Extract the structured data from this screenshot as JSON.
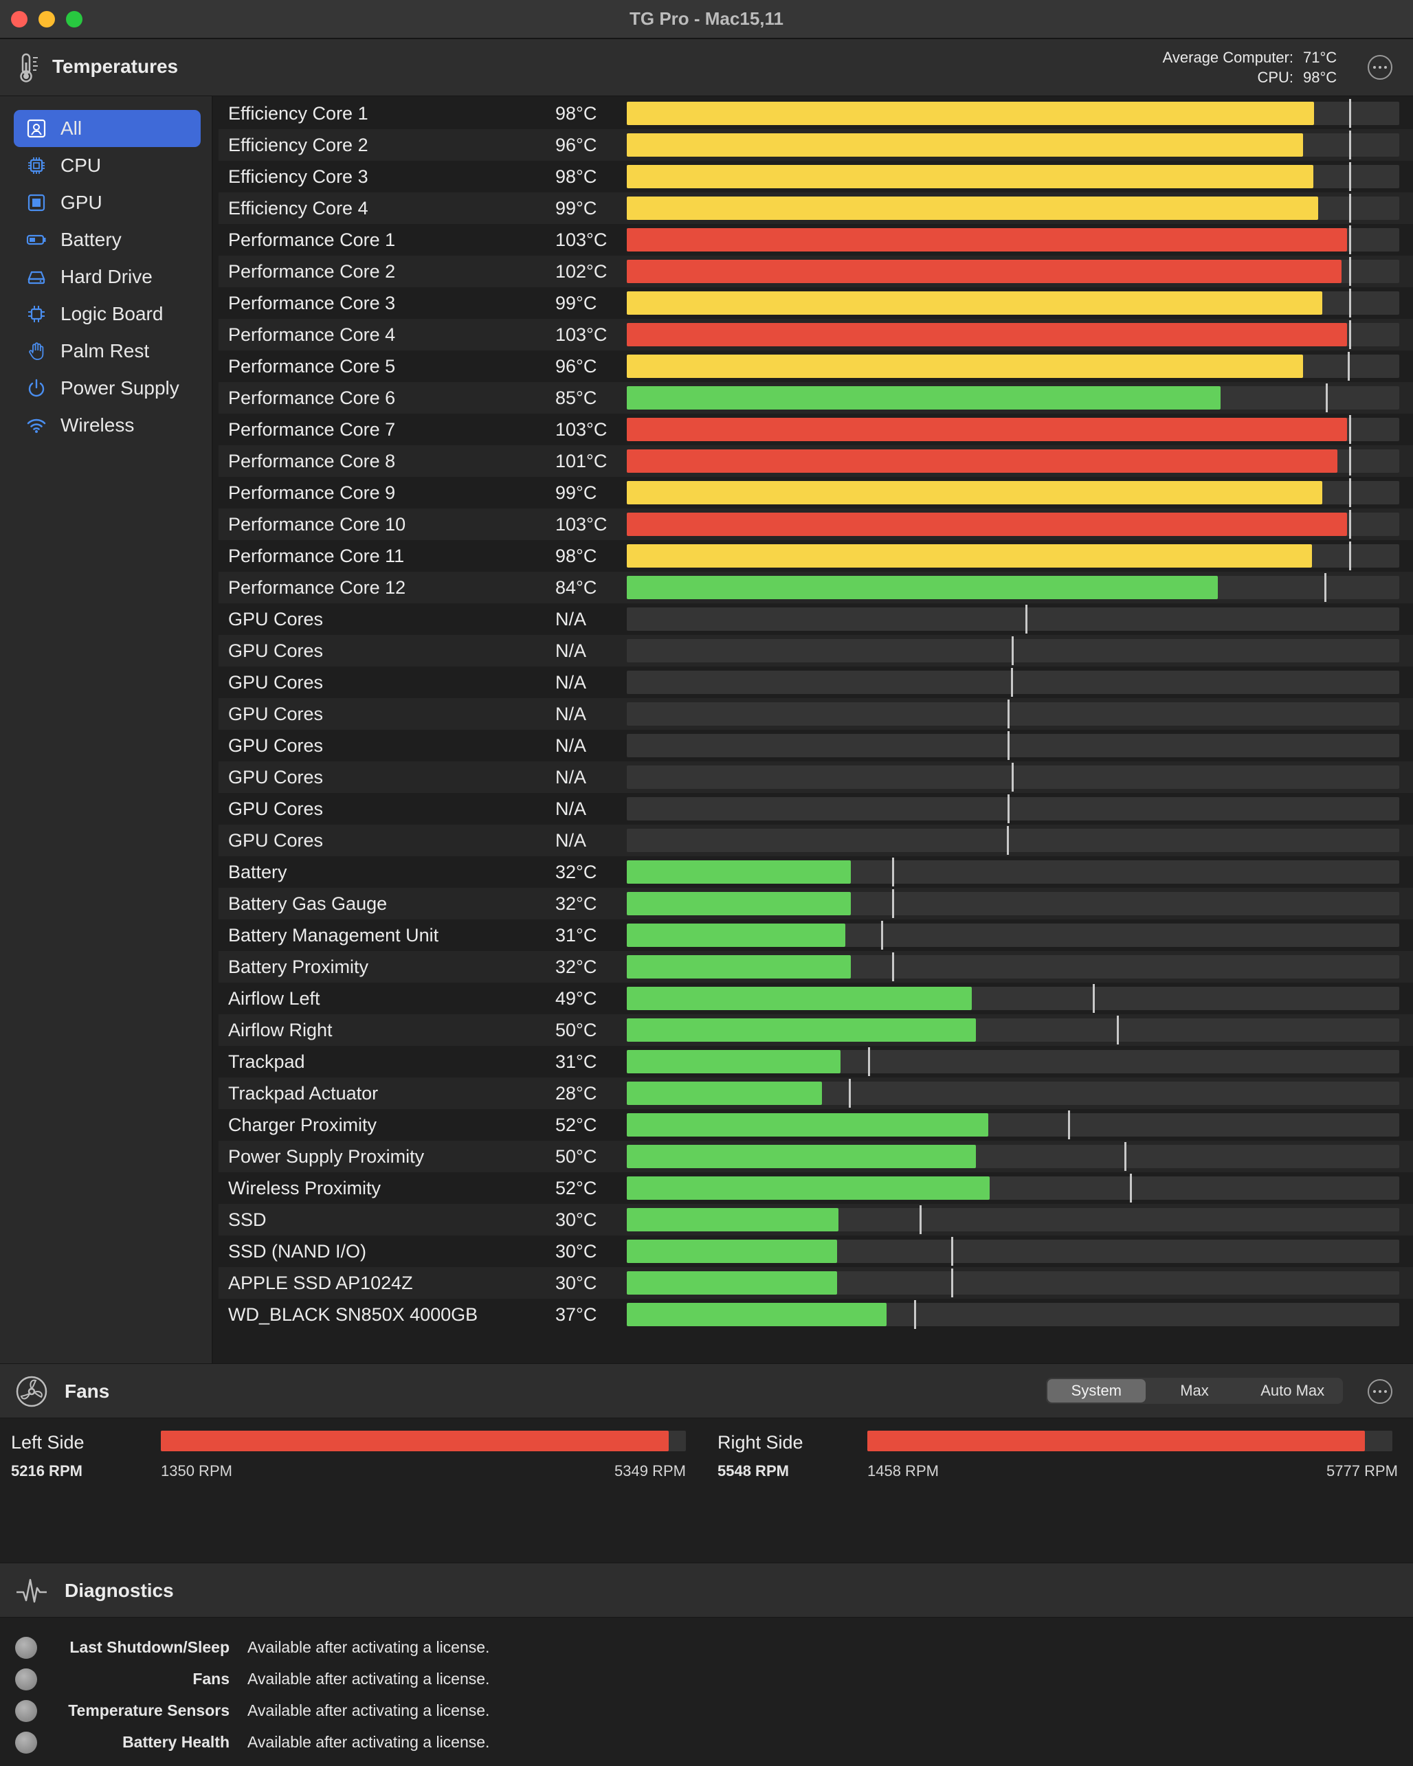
{
  "window": {
    "title": "TG Pro - Mac15,11"
  },
  "temps_header": {
    "label": "Temperatures",
    "avg_label": "Average Computer:",
    "avg_value": "71°C",
    "cpu_label": "CPU:",
    "cpu_value": "98°C"
  },
  "sidebar": {
    "items": [
      {
        "label": "All",
        "icon": "all-sensors-icon",
        "selected": true
      },
      {
        "label": "CPU",
        "icon": "cpu-icon"
      },
      {
        "label": "GPU",
        "icon": "gpu-icon"
      },
      {
        "label": "Battery",
        "icon": "battery-icon"
      },
      {
        "label": "Hard Drive",
        "icon": "hard-drive-icon"
      },
      {
        "label": "Logic Board",
        "icon": "logic-board-icon"
      },
      {
        "label": "Palm Rest",
        "icon": "hand-icon"
      },
      {
        "label": "Power Supply",
        "icon": "power-icon"
      },
      {
        "label": "Wireless",
        "icon": "wifi-icon"
      }
    ]
  },
  "colors": {
    "hot": "#e74c3c",
    "warm": "#f8d548",
    "ok": "#63d05b",
    "accent": "#3f6ad8"
  },
  "sensors": [
    {
      "name": "Efficiency Core 1",
      "temp": "98°C",
      "level": 0.89,
      "max_mark": 0.935,
      "color": "warm"
    },
    {
      "name": "Efficiency Core 2",
      "temp": "96°C",
      "level": 0.875,
      "max_mark": 0.935,
      "color": "warm"
    },
    {
      "name": "Efficiency Core 3",
      "temp": "98°C",
      "level": 0.889,
      "max_mark": 0.935,
      "color": "warm"
    },
    {
      "name": "Efficiency Core 4",
      "temp": "99°C",
      "level": 0.895,
      "max_mark": 0.935,
      "color": "warm"
    },
    {
      "name": "Performance Core 1",
      "temp": "103°C",
      "level": 0.932,
      "max_mark": 0.935,
      "color": "hot"
    },
    {
      "name": "Performance Core 2",
      "temp": "102°C",
      "level": 0.925,
      "max_mark": 0.935,
      "color": "hot"
    },
    {
      "name": "Performance Core 3",
      "temp": "99°C",
      "level": 0.9,
      "max_mark": 0.935,
      "color": "warm"
    },
    {
      "name": "Performance Core 4",
      "temp": "103°C",
      "level": 0.932,
      "max_mark": 0.935,
      "color": "hot"
    },
    {
      "name": "Performance Core 5",
      "temp": "96°C",
      "level": 0.875,
      "max_mark": 0.933,
      "color": "warm"
    },
    {
      "name": "Performance Core 6",
      "temp": "85°C",
      "level": 0.769,
      "max_mark": 0.905,
      "color": "ok"
    },
    {
      "name": "Performance Core 7",
      "temp": "103°C",
      "level": 0.932,
      "max_mark": 0.935,
      "color": "hot"
    },
    {
      "name": "Performance Core 8",
      "temp": "101°C",
      "level": 0.92,
      "max_mark": 0.935,
      "color": "hot"
    },
    {
      "name": "Performance Core 9",
      "temp": "99°C",
      "level": 0.9,
      "max_mark": 0.935,
      "color": "warm"
    },
    {
      "name": "Performance Core 10",
      "temp": "103°C",
      "level": 0.932,
      "max_mark": 0.935,
      "color": "hot"
    },
    {
      "name": "Performance Core 11",
      "temp": "98°C",
      "level": 0.887,
      "max_mark": 0.935,
      "color": "warm"
    },
    {
      "name": "Performance Core 12",
      "temp": "84°C",
      "level": 0.765,
      "max_mark": 0.903,
      "color": "ok"
    },
    {
      "name": "GPU Cores",
      "temp": "N/A",
      "level": 0,
      "max_mark": 0.516,
      "color": "ok"
    },
    {
      "name": "GPU Cores",
      "temp": "N/A",
      "level": 0,
      "max_mark": 0.498,
      "color": "ok"
    },
    {
      "name": "GPU Cores",
      "temp": "N/A",
      "level": 0,
      "max_mark": 0.497,
      "color": "ok"
    },
    {
      "name": "GPU Cores",
      "temp": "N/A",
      "level": 0,
      "max_mark": 0.493,
      "color": "ok"
    },
    {
      "name": "GPU Cores",
      "temp": "N/A",
      "level": 0,
      "max_mark": 0.493,
      "color": "ok"
    },
    {
      "name": "GPU Cores",
      "temp": "N/A",
      "level": 0,
      "max_mark": 0.498,
      "color": "ok"
    },
    {
      "name": "GPU Cores",
      "temp": "N/A",
      "level": 0,
      "max_mark": 0.493,
      "color": "ok"
    },
    {
      "name": "GPU Cores",
      "temp": "N/A",
      "level": 0,
      "max_mark": 0.492,
      "color": "ok"
    },
    {
      "name": "Battery",
      "temp": "32°C",
      "level": 0.29,
      "max_mark": 0.343,
      "color": "ok"
    },
    {
      "name": "Battery Gas Gauge",
      "temp": "32°C",
      "level": 0.29,
      "max_mark": 0.343,
      "color": "ok"
    },
    {
      "name": "Battery Management Unit",
      "temp": "31°C",
      "level": 0.283,
      "max_mark": 0.329,
      "color": "ok"
    },
    {
      "name": "Battery Proximity",
      "temp": "32°C",
      "level": 0.29,
      "max_mark": 0.343,
      "color": "ok"
    },
    {
      "name": "Airflow Left",
      "temp": "49°C",
      "level": 0.447,
      "max_mark": 0.603,
      "color": "ok"
    },
    {
      "name": "Airflow Right",
      "temp": "50°C",
      "level": 0.452,
      "max_mark": 0.634,
      "color": "ok"
    },
    {
      "name": "Trackpad",
      "temp": "31°C",
      "level": 0.277,
      "max_mark": 0.312,
      "color": "ok"
    },
    {
      "name": "Trackpad Actuator",
      "temp": "28°C",
      "level": 0.253,
      "max_mark": 0.287,
      "color": "ok"
    },
    {
      "name": "Charger Proximity",
      "temp": "52°C",
      "level": 0.468,
      "max_mark": 0.571,
      "color": "ok"
    },
    {
      "name": "Power Supply Proximity",
      "temp": "50°C",
      "level": 0.452,
      "max_mark": 0.644,
      "color": "ok"
    },
    {
      "name": "Wireless Proximity",
      "temp": "52°C",
      "level": 0.47,
      "max_mark": 0.651,
      "color": "ok"
    },
    {
      "name": "SSD",
      "temp": "30°C",
      "level": 0.274,
      "max_mark": 0.379,
      "color": "ok"
    },
    {
      "name": "SSD (NAND I/O)",
      "temp": "30°C",
      "level": 0.272,
      "max_mark": 0.42,
      "color": "ok"
    },
    {
      "name": "APPLE SSD AP1024Z",
      "temp": "30°C",
      "level": 0.272,
      "max_mark": 0.42,
      "color": "ok"
    },
    {
      "name": "WD_BLACK SN850X 4000GB",
      "temp": "37°C",
      "level": 0.336,
      "max_mark": 0.372,
      "color": "ok"
    }
  ],
  "fans": {
    "label": "Fans",
    "modes": [
      "System",
      "Max",
      "Auto Max"
    ],
    "selected_mode": "System",
    "items": [
      {
        "name": "Left Side",
        "rpm": "5216 RPM",
        "min": "1350 RPM",
        "max": "5349 RPM",
        "level": 0.967
      },
      {
        "name": "Right Side",
        "rpm": "5548 RPM",
        "min": "1458 RPM",
        "max": "5777 RPM",
        "level": 0.947
      }
    ]
  },
  "diagnostics": {
    "label": "Diagnostics",
    "items": [
      {
        "label": "Last Shutdown/Sleep",
        "value": "Available after activating a license."
      },
      {
        "label": "Fans",
        "value": "Available after activating a license."
      },
      {
        "label": "Temperature Sensors",
        "value": "Available after activating a license."
      },
      {
        "label": "Battery Health",
        "value": "Available after activating a license."
      }
    ]
  }
}
